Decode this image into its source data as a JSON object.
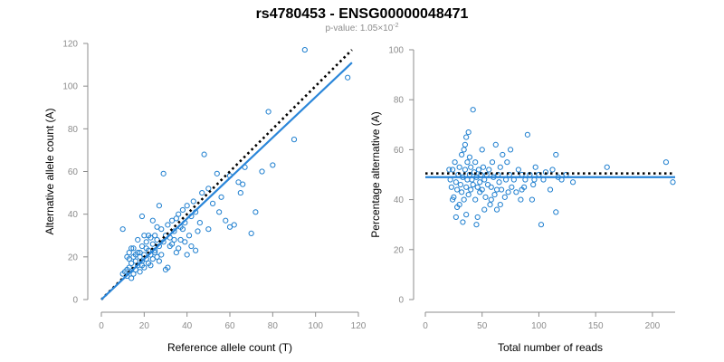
{
  "title": "rs4780453 - ENSG00000048471",
  "subtitle_prefix": "p-value: 1.05",
  "subtitle_exp": "×10",
  "subtitle_sup": "-2",
  "chart_data": [
    {
      "type": "scatter",
      "xlabel": "Reference allele count (T)",
      "ylabel": "Alternative allele count (A)",
      "xlim": [
        0,
        120
      ],
      "ylim": [
        0,
        120
      ],
      "xticks": [
        "0",
        "20",
        "40",
        "60",
        "80",
        "100",
        "120"
      ],
      "yticks": [
        "0",
        "20",
        "40",
        "60",
        "80",
        "100",
        "120"
      ],
      "fit_line": {
        "from": [
          0,
          0
        ],
        "to": [
          117,
          111
        ]
      },
      "reference_line": {
        "from": [
          0,
          0
        ],
        "to": [
          117,
          117
        ]
      },
      "points": [
        [
          10,
          12
        ],
        [
          11,
          13
        ],
        [
          12,
          14
        ],
        [
          12,
          11
        ],
        [
          13,
          15
        ],
        [
          13,
          22
        ],
        [
          14,
          17
        ],
        [
          14,
          24
        ],
        [
          15,
          20
        ],
        [
          15,
          12
        ],
        [
          16,
          18
        ],
        [
          16,
          14
        ],
        [
          17,
          22
        ],
        [
          17,
          16
        ],
        [
          18,
          20
        ],
        [
          18,
          13
        ],
        [
          19,
          25
        ],
        [
          19,
          18
        ],
        [
          20,
          21
        ],
        [
          20,
          15
        ],
        [
          21,
          27
        ],
        [
          21,
          19
        ],
        [
          22,
          23
        ],
        [
          22,
          17
        ],
        [
          23,
          29
        ],
        [
          23,
          21
        ],
        [
          24,
          26
        ],
        [
          24,
          19
        ],
        [
          25,
          22
        ],
        [
          25,
          30
        ],
        [
          26,
          28
        ],
        [
          26,
          20
        ],
        [
          27,
          25
        ],
        [
          28,
          33
        ],
        [
          29,
          27
        ],
        [
          30,
          30
        ],
        [
          31,
          35
        ],
        [
          32,
          29
        ],
        [
          33,
          37
        ],
        [
          34,
          32
        ],
        [
          35,
          38
        ],
        [
          36,
          40
        ],
        [
          37,
          34
        ],
        [
          38,
          42
        ],
        [
          39,
          36
        ],
        [
          40,
          44
        ],
        [
          41,
          30
        ],
        [
          42,
          39
        ],
        [
          43,
          46
        ],
        [
          45,
          32
        ],
        [
          47,
          50
        ],
        [
          48,
          68
        ],
        [
          50,
          52
        ],
        [
          52,
          45
        ],
        [
          54,
          59
        ],
        [
          56,
          48
        ],
        [
          58,
          37
        ],
        [
          60,
          58
        ],
        [
          62,
          35
        ],
        [
          64,
          55
        ],
        [
          65,
          50
        ],
        [
          67,
          62
        ],
        [
          70,
          31
        ],
        [
          72,
          41
        ],
        [
          75,
          60
        ],
        [
          78,
          88
        ],
        [
          80,
          63
        ],
        [
          90,
          75
        ],
        [
          95,
          117
        ],
        [
          115,
          104
        ],
        [
          10,
          33
        ],
        [
          14,
          10
        ],
        [
          17,
          28
        ],
        [
          19,
          39
        ],
        [
          22,
          30
        ],
        [
          24,
          37
        ],
        [
          27,
          44
        ],
        [
          29,
          59
        ],
        [
          31,
          15
        ],
        [
          33,
          26
        ],
        [
          36,
          24
        ],
        [
          38,
          33
        ],
        [
          40,
          21
        ],
        [
          44,
          23
        ],
        [
          46,
          36
        ],
        [
          50,
          33
        ],
        [
          55,
          41
        ],
        [
          60,
          34
        ],
        [
          66,
          54
        ],
        [
          12,
          20
        ],
        [
          15,
          24
        ],
        [
          18,
          22
        ],
        [
          20,
          30
        ],
        [
          23,
          16
        ],
        [
          26,
          34
        ],
        [
          28,
          21
        ],
        [
          30,
          14
        ],
        [
          34,
          28
        ],
        [
          37,
          28
        ],
        [
          42,
          25
        ],
        [
          13,
          19
        ],
        [
          16,
          21
        ],
        [
          19,
          16
        ],
        [
          21,
          24
        ],
        [
          25,
          23
        ],
        [
          27,
          18
        ],
        [
          32,
          25
        ],
        [
          35,
          22
        ],
        [
          39,
          27
        ],
        [
          44,
          41
        ]
      ]
    },
    {
      "type": "scatter",
      "xlabel": "Total number of reads",
      "ylabel": "Percentage alternative (A)",
      "xlim": [
        0,
        220
      ],
      "ylim": [
        0,
        100
      ],
      "xticks": [
        "0",
        "50",
        "100",
        "150",
        "200"
      ],
      "yticks": [
        "0",
        "20",
        "40",
        "60",
        "80",
        "100"
      ],
      "fit_line": {
        "from": [
          0,
          49
        ],
        "to": [
          220,
          49
        ]
      },
      "reference_line": {
        "from": [
          0,
          50.5
        ],
        "to": [
          220,
          50.5
        ]
      },
      "points": [
        [
          22,
          48
        ],
        [
          23,
          45
        ],
        [
          24,
          52
        ],
        [
          25,
          41
        ],
        [
          26,
          55
        ],
        [
          27,
          47
        ],
        [
          28,
          44
        ],
        [
          29,
          50
        ],
        [
          30,
          38
        ],
        [
          30,
          53
        ],
        [
          31,
          46
        ],
        [
          32,
          58
        ],
        [
          32,
          43
        ],
        [
          33,
          49
        ],
        [
          34,
          60
        ],
        [
          34,
          40
        ],
        [
          35,
          52
        ],
        [
          35,
          62
        ],
        [
          36,
          45
        ],
        [
          36,
          65
        ],
        [
          37,
          48
        ],
        [
          37,
          55
        ],
        [
          38,
          42
        ],
        [
          38,
          67
        ],
        [
          39,
          50
        ],
        [
          39,
          57
        ],
        [
          40,
          44
        ],
        [
          40,
          53
        ],
        [
          41,
          48
        ],
        [
          42,
          76
        ],
        [
          42,
          46
        ],
        [
          43,
          51
        ],
        [
          44,
          40
        ],
        [
          44,
          55
        ],
        [
          45,
          49
        ],
        [
          46,
          33
        ],
        [
          46,
          45
        ],
        [
          47,
          52
        ],
        [
          48,
          47
        ],
        [
          48,
          43
        ],
        [
          49,
          50
        ],
        [
          50,
          60
        ],
        [
          50,
          44
        ],
        [
          51,
          53
        ],
        [
          52,
          48
        ],
        [
          53,
          41
        ],
        [
          54,
          50
        ],
        [
          55,
          46
        ],
        [
          56,
          52
        ],
        [
          57,
          38
        ],
        [
          58,
          45
        ],
        [
          59,
          55
        ],
        [
          60,
          49
        ],
        [
          61,
          42
        ],
        [
          62,
          62
        ],
        [
          63,
          36
        ],
        [
          64,
          50
        ],
        [
          65,
          47
        ],
        [
          66,
          53
        ],
        [
          67,
          44
        ],
        [
          68,
          58
        ],
        [
          70,
          41
        ],
        [
          71,
          48
        ],
        [
          72,
          55
        ],
        [
          73,
          43
        ],
        [
          74,
          50
        ],
        [
          75,
          60
        ],
        [
          76,
          45
        ],
        [
          78,
          48
        ],
        [
          80,
          43
        ],
        [
          82,
          52
        ],
        [
          84,
          40
        ],
        [
          85,
          50
        ],
        [
          87,
          45
        ],
        [
          88,
          48
        ],
        [
          90,
          66
        ],
        [
          92,
          50
        ],
        [
          95,
          46
        ],
        [
          97,
          53
        ],
        [
          100,
          50
        ],
        [
          102,
          30
        ],
        [
          104,
          48
        ],
        [
          106,
          51
        ],
        [
          110,
          44
        ],
        [
          112,
          52
        ],
        [
          115,
          35
        ],
        [
          117,
          49
        ],
        [
          120,
          48
        ],
        [
          124,
          50
        ],
        [
          130,
          47
        ],
        [
          160,
          53
        ],
        [
          212,
          55
        ],
        [
          218,
          47
        ],
        [
          21,
          52
        ],
        [
          24,
          40
        ],
        [
          27,
          33
        ],
        [
          28,
          37
        ],
        [
          33,
          31
        ],
        [
          36,
          34
        ],
        [
          45,
          30
        ],
        [
          52,
          36
        ],
        [
          58,
          40
        ],
        [
          63,
          44
        ],
        [
          66,
          38
        ],
        [
          85,
          44
        ],
        [
          94,
          40
        ],
        [
          115,
          58
        ],
        [
          96,
          48
        ]
      ]
    }
  ]
}
